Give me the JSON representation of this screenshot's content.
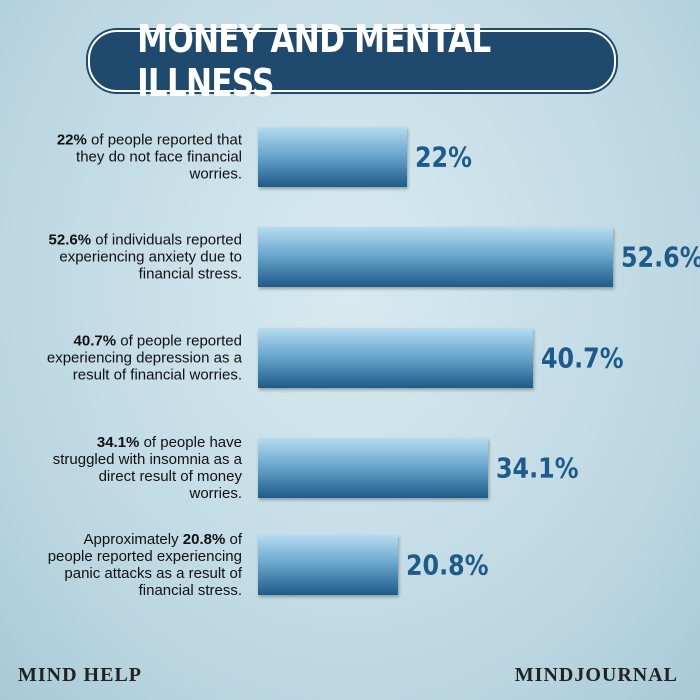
{
  "chart_data": {
    "type": "bar",
    "title": "MONEY AND MENTAL ILLNESS",
    "categories": [
      "22% of people reported that they do not face financial worries.",
      "52.6% of individuals reported experiencing anxiety due to financial stress.",
      "40.7% of people reported experiencing depression as a result of financial worries.",
      "34.1% of people have struggled with insomnia as a direct result of money worries.",
      "Approximately 20.8% of people reported experiencing panic attacks as a result of financial stress."
    ],
    "values": [
      22,
      52.6,
      40.7,
      34.1,
      20.8
    ],
    "value_labels": [
      "22%",
      "52.6%",
      "40.7%",
      "34.1%",
      "20.8%"
    ],
    "color": "#1f5b8a"
  },
  "logos": [
    "MIND HELP",
    "MINDJOURNAL"
  ]
}
